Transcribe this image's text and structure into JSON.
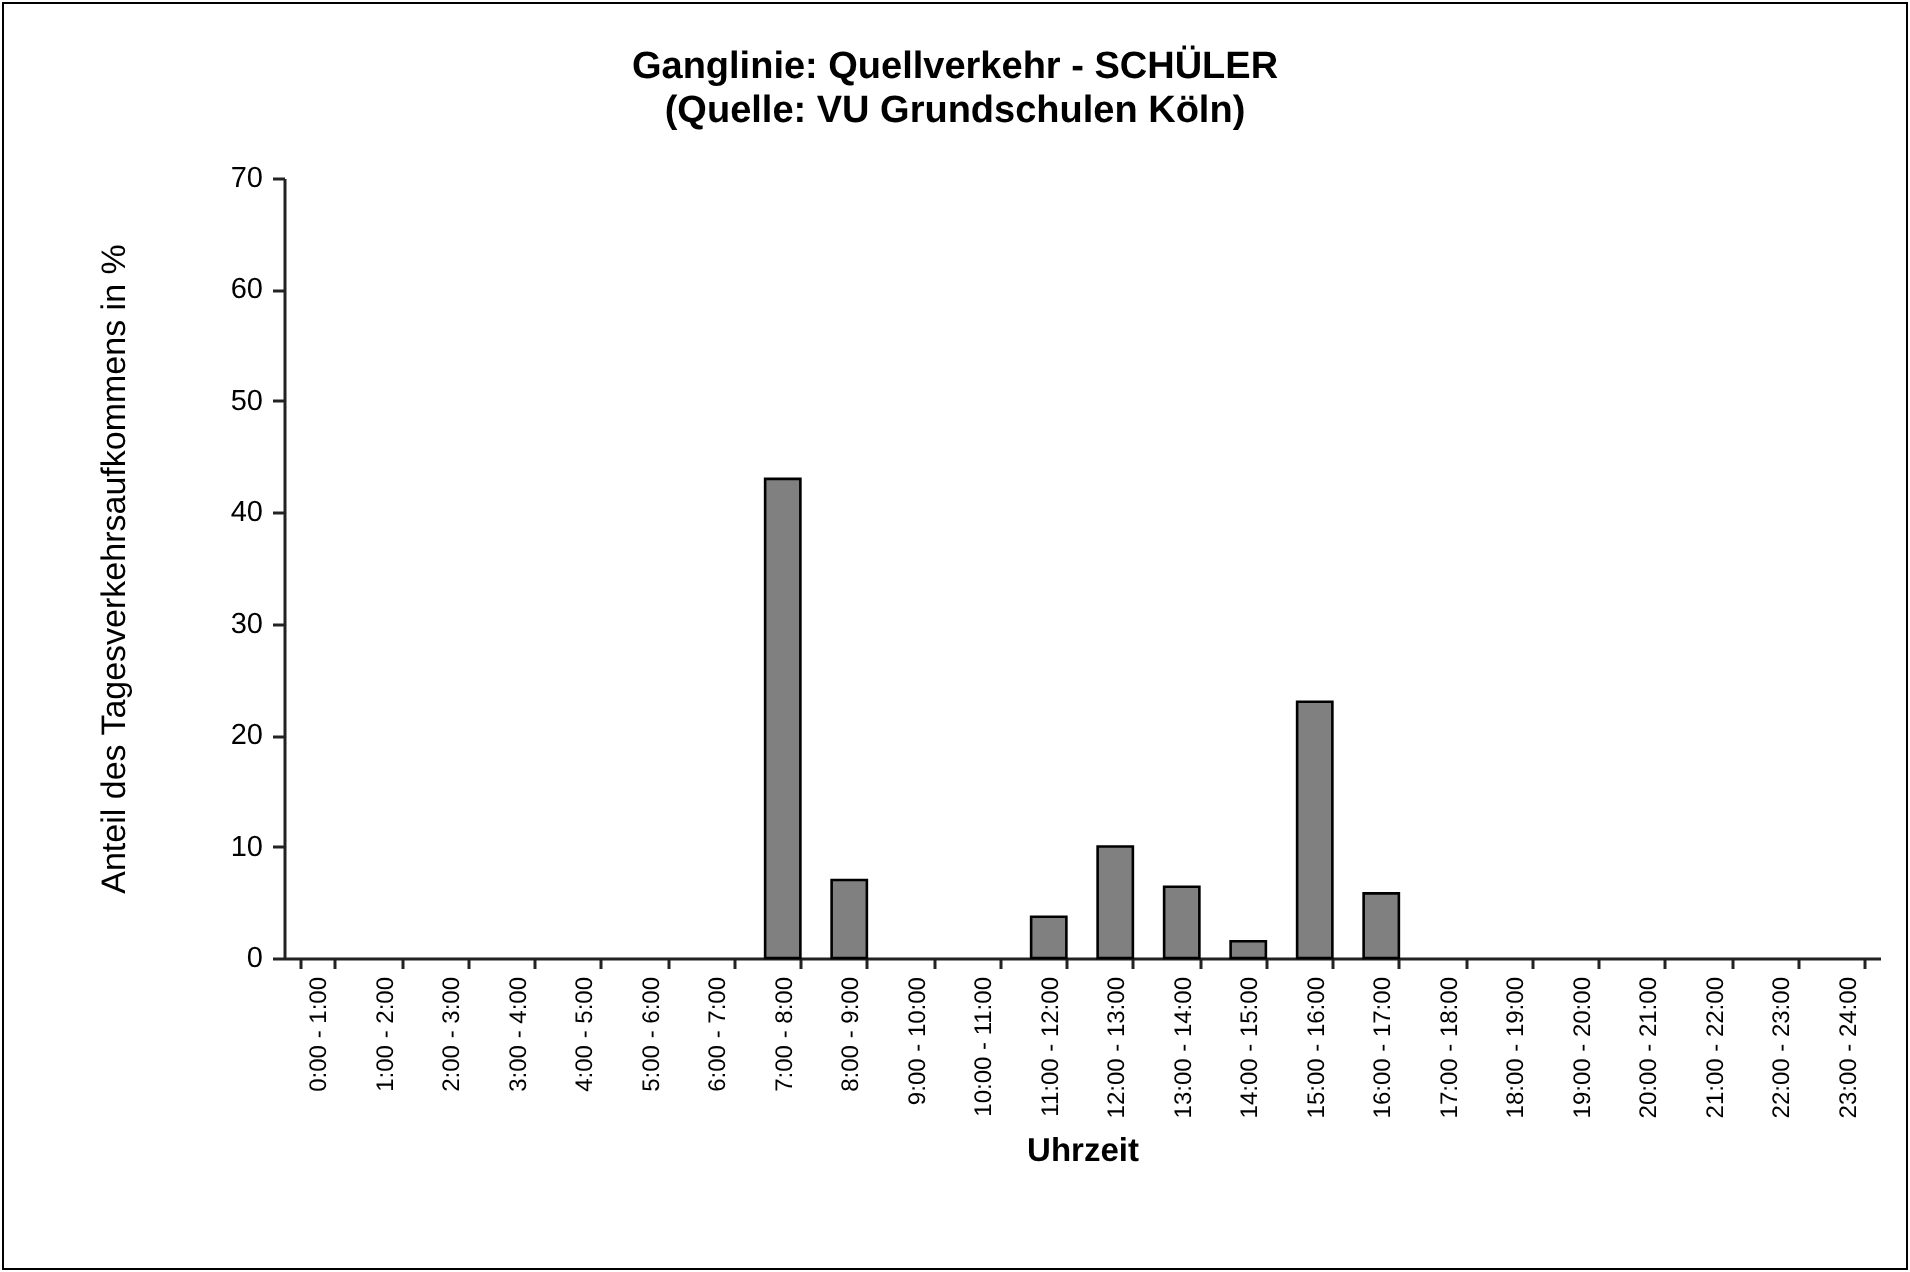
{
  "chart_data": {
    "type": "bar",
    "title": "Ganglinie: Quellverkehr - SCHÜLER",
    "subtitle": "(Quelle: VU Grundschulen Köln)",
    "xlabel": "Uhrzeit",
    "ylabel": "Anteil des Tagesverkehrsaufkommens in %",
    "categories": [
      "0:00 - 1:00",
      "1:00 - 2:00",
      "2:00 - 3:00",
      "3:00 - 4:00",
      "4:00 - 5:00",
      "5:00 - 6:00",
      "6:00 - 7:00",
      "7:00 - 8:00",
      "8:00 - 9:00",
      "9:00 - 10:00",
      "10:00 - 11:00",
      "11:00 - 12:00",
      "12:00 - 13:00",
      "13:00 - 14:00",
      "14:00 - 15:00",
      "15:00 - 16:00",
      "16:00 - 17:00",
      "17:00 - 18:00",
      "18:00 - 19:00",
      "19:00 - 20:00",
      "20:00 - 21:00",
      "21:00 - 22:00",
      "22:00 - 23:00",
      "23:00 - 24:00"
    ],
    "values": [
      0,
      0,
      0,
      0,
      0,
      0,
      0,
      43,
      7,
      0,
      0,
      3.7,
      10,
      6.4,
      1.5,
      23,
      5.8,
      0,
      0,
      0,
      0,
      0,
      0,
      0
    ],
    "color": "#808080",
    "ylim": [
      0,
      70
    ],
    "yticks": [
      0,
      10,
      20,
      30,
      40,
      50,
      60,
      70
    ]
  }
}
